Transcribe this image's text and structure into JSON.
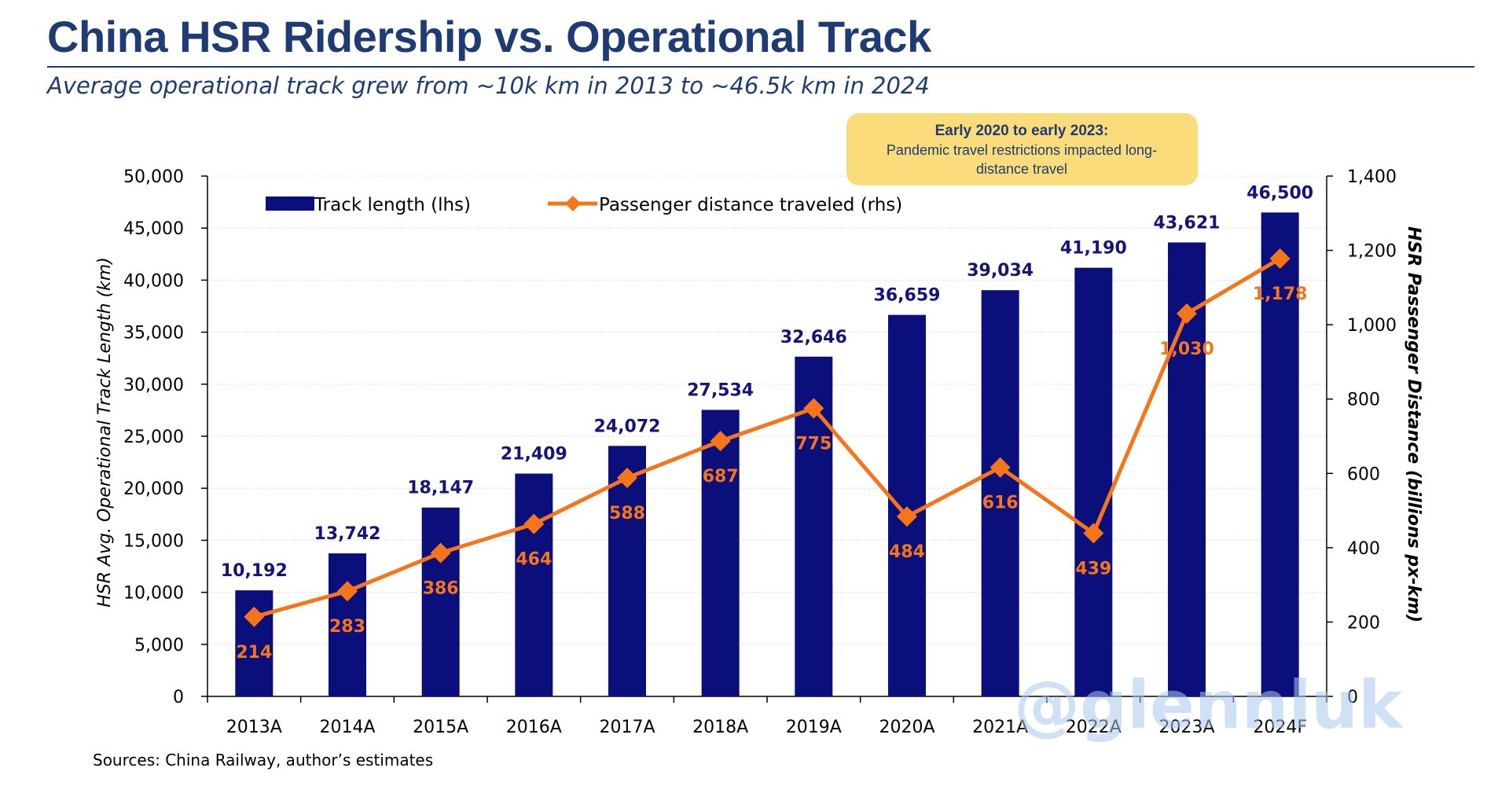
{
  "header": {
    "title": "China HSR Ridership vs. Operational Track",
    "subtitle": "Average operational track grew from ~10k km in 2013 to ~46.5k km in 2024"
  },
  "annotation": {
    "heading": "Early 2020 to early 2023:",
    "line1": "Pandemic travel restrictions impacted long-",
    "line2": "distance travel",
    "fill": "#fadd7a"
  },
  "footer": {
    "source": "Sources: China Railway, author’s estimates"
  },
  "watermark": "@glennluk",
  "colors": {
    "bars": "#0b0f7c",
    "line": "#f7751a",
    "bar_labels": "#14147a",
    "line_labels": "#f7751a",
    "title": "#1f3b73"
  },
  "chart_data": {
    "type": "bar",
    "categories": [
      "2013A",
      "2014A",
      "2015A",
      "2016A",
      "2017A",
      "2018A",
      "2019A",
      "2020A",
      "2021A",
      "2022A",
      "2023A",
      "2024F"
    ],
    "series": [
      {
        "name": "Track length (lhs)",
        "type": "bar",
        "axis": "left",
        "values": [
          10192,
          13742,
          18147,
          21409,
          24072,
          27534,
          32646,
          36659,
          39034,
          41190,
          43621,
          46500
        ],
        "labels": [
          "10,192",
          "13,742",
          "18,147",
          "21,409",
          "24,072",
          "27,534",
          "32,646",
          "36,659",
          "39,034",
          "41,190",
          "43,621",
          "46,500"
        ]
      },
      {
        "name": "Passenger distance traveled (rhs)",
        "type": "line",
        "marker": "diamond",
        "axis": "right",
        "values": [
          214,
          283,
          386,
          464,
          588,
          687,
          775,
          484,
          616,
          439,
          1030,
          1178
        ],
        "labels": [
          "214",
          "283",
          "386",
          "464",
          "588",
          "687",
          "775",
          "484",
          "616",
          "439",
          "1,030",
          "1,178"
        ]
      }
    ],
    "y_left": {
      "label": "HSR Avg. Operational Track Length (km)",
      "range": [
        0,
        50000
      ],
      "ticks": [
        "0",
        "5,000",
        "10,000",
        "15,000",
        "20,000",
        "25,000",
        "30,000",
        "35,000",
        "40,000",
        "45,000",
        "50,000"
      ]
    },
    "y_right": {
      "label": "HSR Passenger Distance (billions px-km)",
      "range": [
        0,
        1400
      ],
      "ticks": [
        "0",
        "200",
        "400",
        "600",
        "800",
        "1,000",
        "1,200",
        "1,400"
      ]
    },
    "grid": true,
    "legend_position": "top-left"
  }
}
